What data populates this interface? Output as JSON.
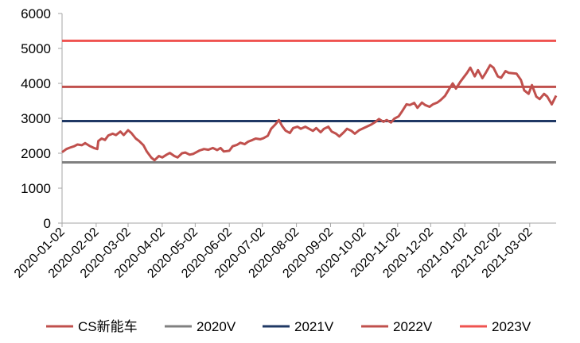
{
  "chart_data": {
    "type": "line",
    "title": "",
    "xlabel": "",
    "ylabel": "",
    "ylim": [
      0,
      6000
    ],
    "y_ticks": [
      "0",
      "1000",
      "2000",
      "3000",
      "4000",
      "5000",
      "6000"
    ],
    "x_range": [
      "2020-01-02",
      "2021-03-26"
    ],
    "x_ticks": [
      "2020-01-02",
      "2020-02-02",
      "2020-03-02",
      "2020-04-02",
      "2020-05-02",
      "2020-06-02",
      "2020-07-02",
      "2020-08-02",
      "2020-09-02",
      "2020-10-02",
      "2020-11-02",
      "2020-12-02",
      "2021-01-02",
      "2021-02-02",
      "2021-03-02"
    ],
    "grid": false,
    "legend_position": "bottom",
    "series": [
      {
        "name": "CS新能车",
        "color": "#c0504d",
        "points": [
          [
            "2020-01-02",
            2030
          ],
          [
            "2020-01-06",
            2120
          ],
          [
            "2020-01-09",
            2160
          ],
          [
            "2020-01-13",
            2200
          ],
          [
            "2020-01-16",
            2250
          ],
          [
            "2020-01-20",
            2230
          ],
          [
            "2020-01-23",
            2290
          ],
          [
            "2020-01-27",
            2210
          ],
          [
            "2020-01-31",
            2150
          ],
          [
            "2020-02-03",
            2120
          ],
          [
            "2020-02-04",
            2350
          ],
          [
            "2020-02-07",
            2420
          ],
          [
            "2020-02-10",
            2380
          ],
          [
            "2020-02-13",
            2510
          ],
          [
            "2020-02-17",
            2560
          ],
          [
            "2020-02-20",
            2520
          ],
          [
            "2020-02-24",
            2620
          ],
          [
            "2020-02-27",
            2520
          ],
          [
            "2020-03-02",
            2660
          ],
          [
            "2020-03-05",
            2580
          ],
          [
            "2020-03-09",
            2420
          ],
          [
            "2020-03-12",
            2350
          ],
          [
            "2020-03-16",
            2230
          ],
          [
            "2020-03-19",
            2050
          ],
          [
            "2020-03-23",
            1880
          ],
          [
            "2020-03-26",
            1800
          ],
          [
            "2020-03-30",
            1920
          ],
          [
            "2020-04-02",
            1880
          ],
          [
            "2020-04-06",
            1960
          ],
          [
            "2020-04-09",
            2010
          ],
          [
            "2020-04-13",
            1920
          ],
          [
            "2020-04-16",
            1880
          ],
          [
            "2020-04-20",
            2000
          ],
          [
            "2020-04-23",
            2020
          ],
          [
            "2020-04-27",
            1960
          ],
          [
            "2020-04-30",
            1980
          ],
          [
            "2020-05-06",
            2080
          ],
          [
            "2020-05-10",
            2120
          ],
          [
            "2020-05-14",
            2100
          ],
          [
            "2020-05-18",
            2150
          ],
          [
            "2020-05-22",
            2090
          ],
          [
            "2020-05-25",
            2150
          ],
          [
            "2020-05-28",
            2050
          ],
          [
            "2020-06-02",
            2070
          ],
          [
            "2020-06-05",
            2200
          ],
          [
            "2020-06-09",
            2240
          ],
          [
            "2020-06-12",
            2300
          ],
          [
            "2020-06-16",
            2260
          ],
          [
            "2020-06-19",
            2330
          ],
          [
            "2020-06-23",
            2380
          ],
          [
            "2020-06-26",
            2420
          ],
          [
            "2020-06-30",
            2400
          ],
          [
            "2020-07-03",
            2430
          ],
          [
            "2020-07-07",
            2500
          ],
          [
            "2020-07-10",
            2700
          ],
          [
            "2020-07-14",
            2830
          ],
          [
            "2020-07-17",
            2950
          ],
          [
            "2020-07-20",
            2780
          ],
          [
            "2020-07-23",
            2650
          ],
          [
            "2020-07-27",
            2580
          ],
          [
            "2020-07-30",
            2720
          ],
          [
            "2020-08-03",
            2760
          ],
          [
            "2020-08-06",
            2700
          ],
          [
            "2020-08-10",
            2760
          ],
          [
            "2020-08-13",
            2710
          ],
          [
            "2020-08-17",
            2640
          ],
          [
            "2020-08-20",
            2720
          ],
          [
            "2020-08-24",
            2600
          ],
          [
            "2020-08-27",
            2700
          ],
          [
            "2020-08-31",
            2760
          ],
          [
            "2020-09-03",
            2620
          ],
          [
            "2020-09-07",
            2560
          ],
          [
            "2020-09-10",
            2480
          ],
          [
            "2020-09-14",
            2600
          ],
          [
            "2020-09-17",
            2700
          ],
          [
            "2020-09-21",
            2640
          ],
          [
            "2020-09-24",
            2560
          ],
          [
            "2020-09-28",
            2660
          ],
          [
            "2020-10-09",
            2820
          ],
          [
            "2020-10-13",
            2900
          ],
          [
            "2020-10-16",
            2980
          ],
          [
            "2020-10-20",
            2900
          ],
          [
            "2020-10-23",
            2950
          ],
          [
            "2020-10-27",
            2880
          ],
          [
            "2020-10-30",
            2990
          ],
          [
            "2020-11-03",
            3060
          ],
          [
            "2020-11-06",
            3200
          ],
          [
            "2020-11-10",
            3400
          ],
          [
            "2020-11-13",
            3380
          ],
          [
            "2020-11-17",
            3440
          ],
          [
            "2020-11-20",
            3300
          ],
          [
            "2020-11-24",
            3450
          ],
          [
            "2020-11-27",
            3380
          ],
          [
            "2020-12-01",
            3330
          ],
          [
            "2020-12-04",
            3400
          ],
          [
            "2020-12-08",
            3450
          ],
          [
            "2020-12-11",
            3520
          ],
          [
            "2020-12-15",
            3640
          ],
          [
            "2020-12-18",
            3800
          ],
          [
            "2020-12-22",
            4000
          ],
          [
            "2020-12-25",
            3850
          ],
          [
            "2020-12-29",
            4050
          ],
          [
            "2021-01-04",
            4300
          ],
          [
            "2021-01-07",
            4450
          ],
          [
            "2021-01-11",
            4200
          ],
          [
            "2021-01-14",
            4380
          ],
          [
            "2021-01-18",
            4150
          ],
          [
            "2021-01-21",
            4300
          ],
          [
            "2021-01-25",
            4520
          ],
          [
            "2021-01-28",
            4450
          ],
          [
            "2021-02-01",
            4200
          ],
          [
            "2021-02-04",
            4160
          ],
          [
            "2021-02-08",
            4350
          ],
          [
            "2021-02-11",
            4300
          ],
          [
            "2021-02-18",
            4280
          ],
          [
            "2021-02-22",
            4100
          ],
          [
            "2021-02-25",
            3800
          ],
          [
            "2021-03-01",
            3700
          ],
          [
            "2021-03-04",
            3950
          ],
          [
            "2021-03-08",
            3620
          ],
          [
            "2021-03-11",
            3550
          ],
          [
            "2021-03-15",
            3700
          ],
          [
            "2021-03-18",
            3620
          ],
          [
            "2021-03-22",
            3400
          ],
          [
            "2021-03-26",
            3650
          ]
        ]
      },
      {
        "name": "2020V",
        "color": "#808080",
        "constant": 1740
      },
      {
        "name": "2021V",
        "color": "#1f3864",
        "constant": 2920
      },
      {
        "name": "2022V",
        "color": "#c0504d",
        "constant": 3900
      },
      {
        "name": "2023V",
        "color": "#ef5350",
        "constant": 5220
      }
    ]
  }
}
